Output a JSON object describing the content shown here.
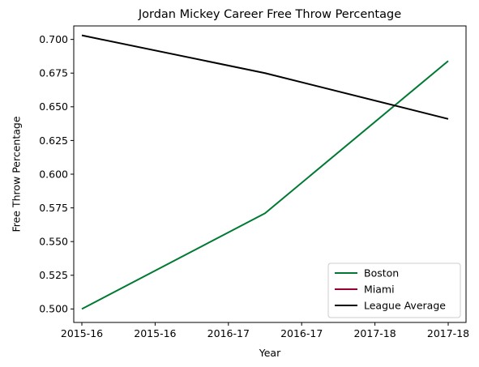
{
  "chart_data": {
    "type": "line",
    "title": "Jordan Mickey Career Free Throw Percentage",
    "xlabel": "Year",
    "ylabel": "Free Throw Percentage",
    "x_tick_labels": [
      "2015-16",
      "2015-16",
      "2016-17",
      "2016-17",
      "2017-18",
      "2017-18"
    ],
    "x_range": [
      0,
      2
    ],
    "ylim": [
      0.49,
      0.71
    ],
    "y_ticks": [
      0.5,
      0.525,
      0.55,
      0.575,
      0.6,
      0.625,
      0.65,
      0.675,
      0.7
    ],
    "y_tick_labels": [
      "0.500",
      "0.525",
      "0.550",
      "0.575",
      "0.600",
      "0.625",
      "0.650",
      "0.675",
      "0.700"
    ],
    "grid": false,
    "legend_position": "lower-right",
    "series": [
      {
        "name": "Boston",
        "color": "#007A33",
        "x": [
          0,
          1,
          2
        ],
        "values": [
          0.5,
          0.571,
          0.684
        ]
      },
      {
        "name": "Miami",
        "color": "#98002E",
        "x": [],
        "values": []
      },
      {
        "name": "League Average",
        "color": "#000000",
        "x": [
          0,
          1,
          2
        ],
        "values": [
          0.703,
          0.675,
          0.641
        ]
      }
    ]
  }
}
